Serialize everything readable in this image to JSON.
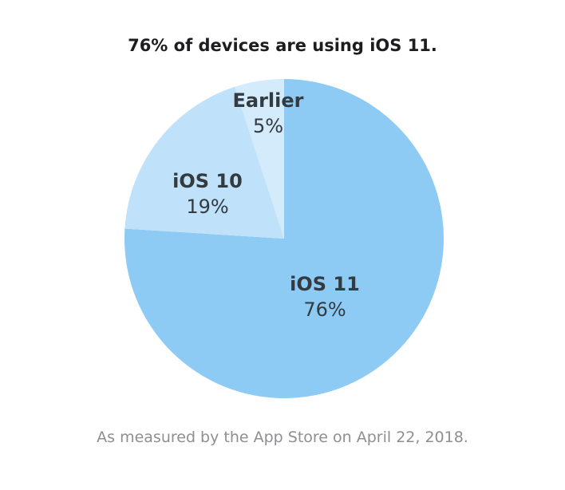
{
  "chart_data": {
    "type": "pie",
    "title": "76% of devices are using iOS 11.",
    "footnote": "As measured by the App Store on April 22, 2018.",
    "slices": [
      {
        "name": "iOS 11",
        "value": 76,
        "value_label": "76%",
        "color": "#8ecbf4"
      },
      {
        "name": "iOS 10",
        "value": 19,
        "value_label": "19%",
        "color": "#bfe1f9"
      },
      {
        "name": "Earlier",
        "value": 5,
        "value_label": "5%",
        "color": "#d3ebfb"
      }
    ],
    "start": "12 o'clock",
    "direction": "clockwise",
    "legend": "none",
    "slice_labels": "inside"
  }
}
